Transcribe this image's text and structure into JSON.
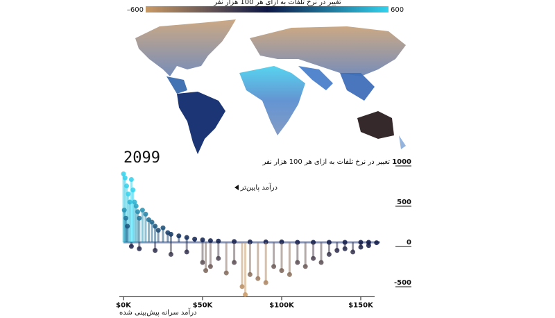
{
  "chart_data": {
    "type": "scatter",
    "title": "تغییر در نرخ تلفات به ازای هر 100 هزار نفر",
    "colorbar": {
      "lim": [
        -600,
        600
      ],
      "ticks": [
        {
          "value": -600,
          "label": "–600"
        },
        600
      ],
      "colors": [
        "#c99a66",
        "#0c1645",
        "#33d1ec"
      ]
    },
    "year": "2099",
    "annotation": "درآمد پایین‌تر",
    "y_label": "تغییر در نرخ تلفات به ازای هر 100 هزار نفر",
    "x_label": "درآمد سرانه پیش‌بینی شده",
    "xlim": [
      0,
      170000
    ],
    "xticks": [
      {
        "value": 0,
        "label": "$0K"
      },
      {
        "value": 50000,
        "label": "$50K"
      },
      {
        "value": 100000,
        "label": "$100K"
      },
      {
        "value": 150000,
        "label": "$150K"
      }
    ],
    "ylim": [
      -650,
      1000
    ],
    "yticks": [
      1000,
      500,
      0,
      {
        "value": -500,
        "label": "-500"
      }
    ],
    "x": [
      0,
      1000,
      2000,
      3000,
      4000,
      500,
      1500,
      2500,
      5000,
      6000,
      7000,
      8000,
      9000,
      10000,
      12000,
      14000,
      16000,
      18000,
      20000,
      22000,
      25000,
      28000,
      30000,
      35000,
      40000,
      45000,
      50000,
      55000,
      60000,
      70000,
      80000,
      90000,
      100000,
      110000,
      120000,
      130000,
      140000,
      150000,
      155000,
      160000,
      5000,
      10000,
      20000,
      30000,
      40000,
      50000,
      52000,
      55000,
      60000,
      65000,
      70000,
      75000,
      77000,
      80000,
      85000,
      90000,
      95000,
      100000,
      105000,
      110000,
      115000,
      120000,
      125000,
      130000,
      135000,
      140000,
      145000,
      150000,
      155000
    ],
    "values": [
      850,
      800,
      700,
      600,
      500,
      400,
      300,
      200,
      780,
      650,
      500,
      450,
      380,
      300,
      400,
      350,
      280,
      250,
      200,
      150,
      180,
      120,
      100,
      80,
      60,
      40,
      30,
      20,
      15,
      10,
      5,
      5,
      5,
      0,
      0,
      0,
      0,
      0,
      0,
      -5,
      -50,
      -80,
      -100,
      -150,
      -120,
      -250,
      -350,
      -300,
      -200,
      -380,
      -250,
      -550,
      -650,
      -400,
      -450,
      -500,
      -300,
      -350,
      -400,
      -250,
      -300,
      -200,
      -250,
      -150,
      -100,
      -80,
      -120,
      -60,
      -40
    ]
  }
}
